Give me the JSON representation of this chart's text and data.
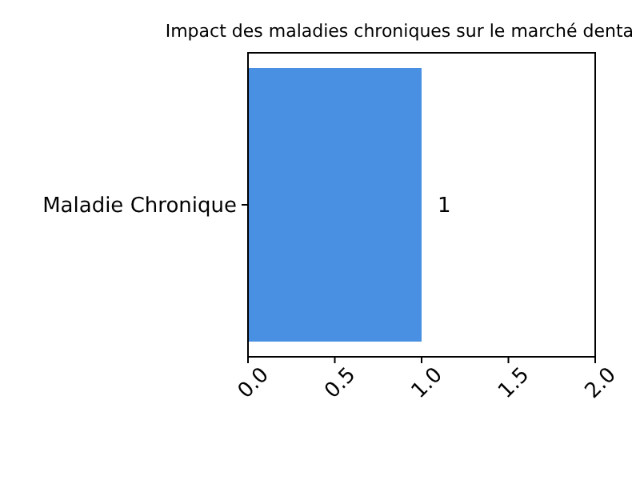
{
  "chart_data": {
    "type": "bar",
    "orientation": "horizontal",
    "title": "Impact des maladies chroniques sur le marché denta",
    "categories": [
      "Maladie Chronique"
    ],
    "values": [
      1
    ],
    "color": "#4a90e2",
    "data_labels": true,
    "xlim": [
      0,
      2
    ],
    "xticks": [
      {
        "value": 0,
        "label": "0.0"
      },
      {
        "value": 0.5,
        "label": "0.5"
      },
      {
        "value": 1,
        "label": "1.0"
      },
      {
        "value": 1.5,
        "label": "1.5"
      },
      {
        "value": 2,
        "label": "2.0"
      }
    ]
  }
}
